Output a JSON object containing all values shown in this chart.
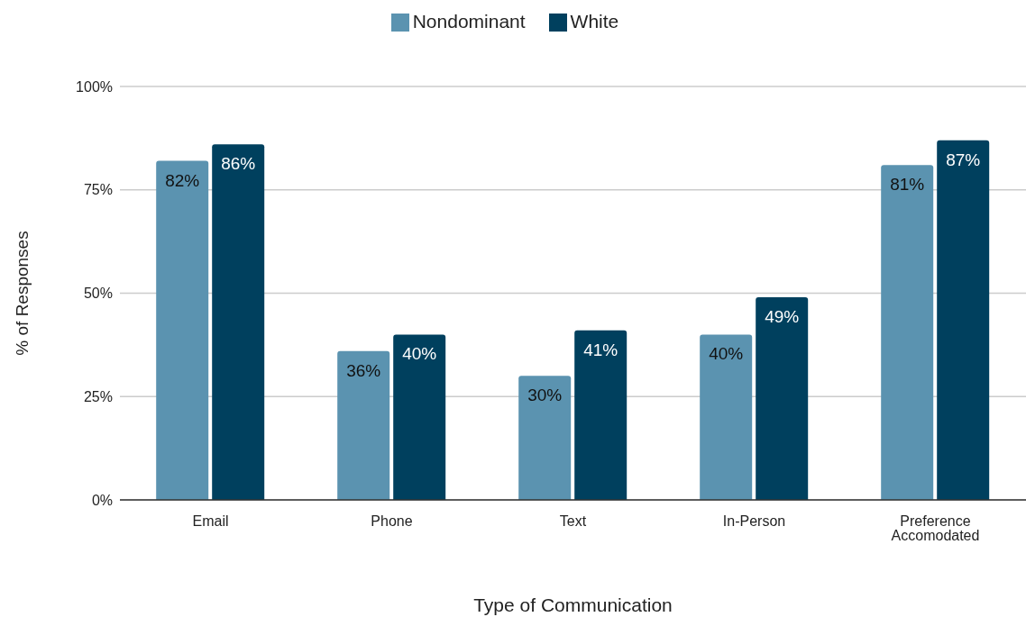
{
  "chart_data": {
    "type": "bar",
    "xlabel": "Type of Communication",
    "ylabel": "% of Responses",
    "categories": [
      "Email",
      "Phone",
      "Text",
      "In-Person",
      "Preference Accomodated"
    ],
    "series": [
      {
        "name": "Nondominant",
        "color": "#5b93b0",
        "values": [
          82,
          36,
          30,
          40,
          81
        ],
        "value_labels": [
          "82%",
          "36%",
          "30%",
          "40%",
          "81%"
        ]
      },
      {
        "name": "White",
        "color": "#00405e",
        "values": [
          86,
          40,
          41,
          49,
          87
        ],
        "value_labels": [
          "86%",
          "40%",
          "41%",
          "49%",
          "87%"
        ]
      }
    ],
    "ylim": [
      0,
      100
    ],
    "yticks": [
      {
        "value": 0,
        "label": "0%"
      },
      {
        "value": 25,
        "label": "25%"
      },
      {
        "value": 50,
        "label": "50%"
      },
      {
        "value": 75,
        "label": "75%"
      },
      {
        "value": 100,
        "label": "100%"
      }
    ],
    "grid": "y",
    "legend": "top"
  }
}
